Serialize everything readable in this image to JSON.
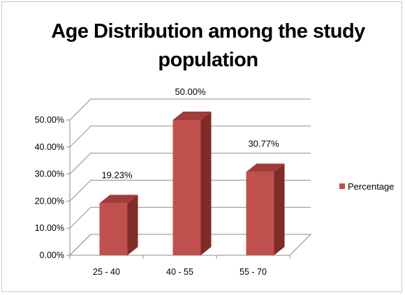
{
  "chart_data": {
    "type": "bar",
    "title_lines": [
      "Age Distribution among the study",
      "population"
    ],
    "categories": [
      "25 - 40",
      "40 - 55",
      "55 - 70"
    ],
    "series": [
      {
        "name": "Percentage",
        "values": [
          19.23,
          50.0,
          30.77
        ]
      }
    ],
    "data_labels": [
      "19.23%",
      "50.00%",
      "30.77%"
    ],
    "y_ticks": [
      "0.00%",
      "10.00%",
      "20.00%",
      "30.00%",
      "40.00%",
      "50.00%"
    ],
    "ylim": [
      0,
      50
    ],
    "y_step": 10,
    "grid": true,
    "three_d": true,
    "legend_position": "right",
    "xlabel": "",
    "ylabel": "",
    "colors": {
      "bar_front": "#c0504d",
      "bar_top": "#a03c39",
      "bar_side": "#7f2b28",
      "grid": "#8c8c8c"
    }
  }
}
